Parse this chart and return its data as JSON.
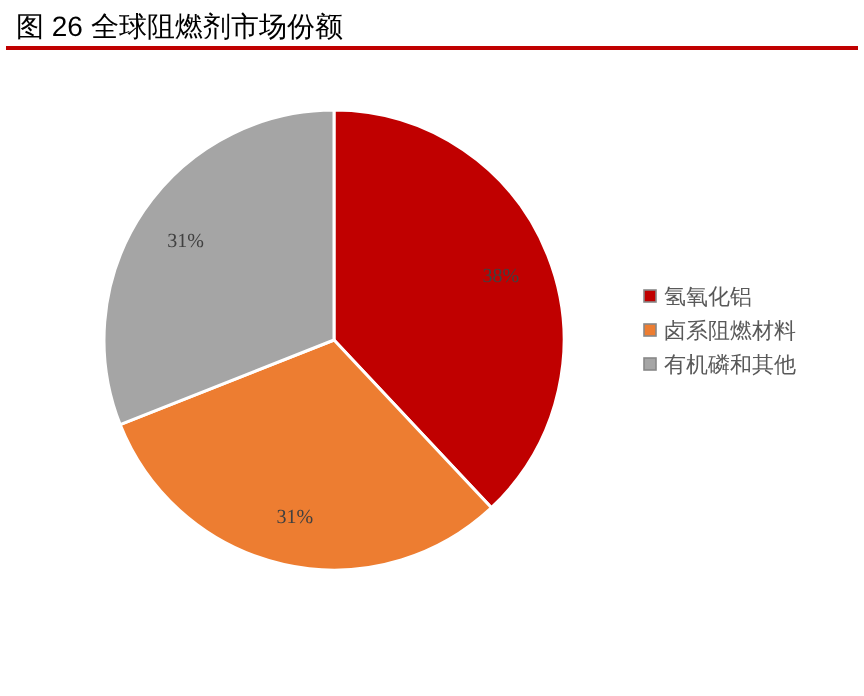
{
  "chart_data": {
    "type": "pie",
    "title": "图 26 全球阻燃剂市场份额",
    "categories": [
      "氢氧化铝",
      "卤系阻燃材料",
      "有机磷和其他"
    ],
    "values": [
      38,
      31,
      31
    ],
    "colors": [
      "#c00000",
      "#ed7d31",
      "#a5a5a5"
    ],
    "value_labels": [
      "38%",
      "31%",
      "31%"
    ],
    "legend": "right"
  }
}
